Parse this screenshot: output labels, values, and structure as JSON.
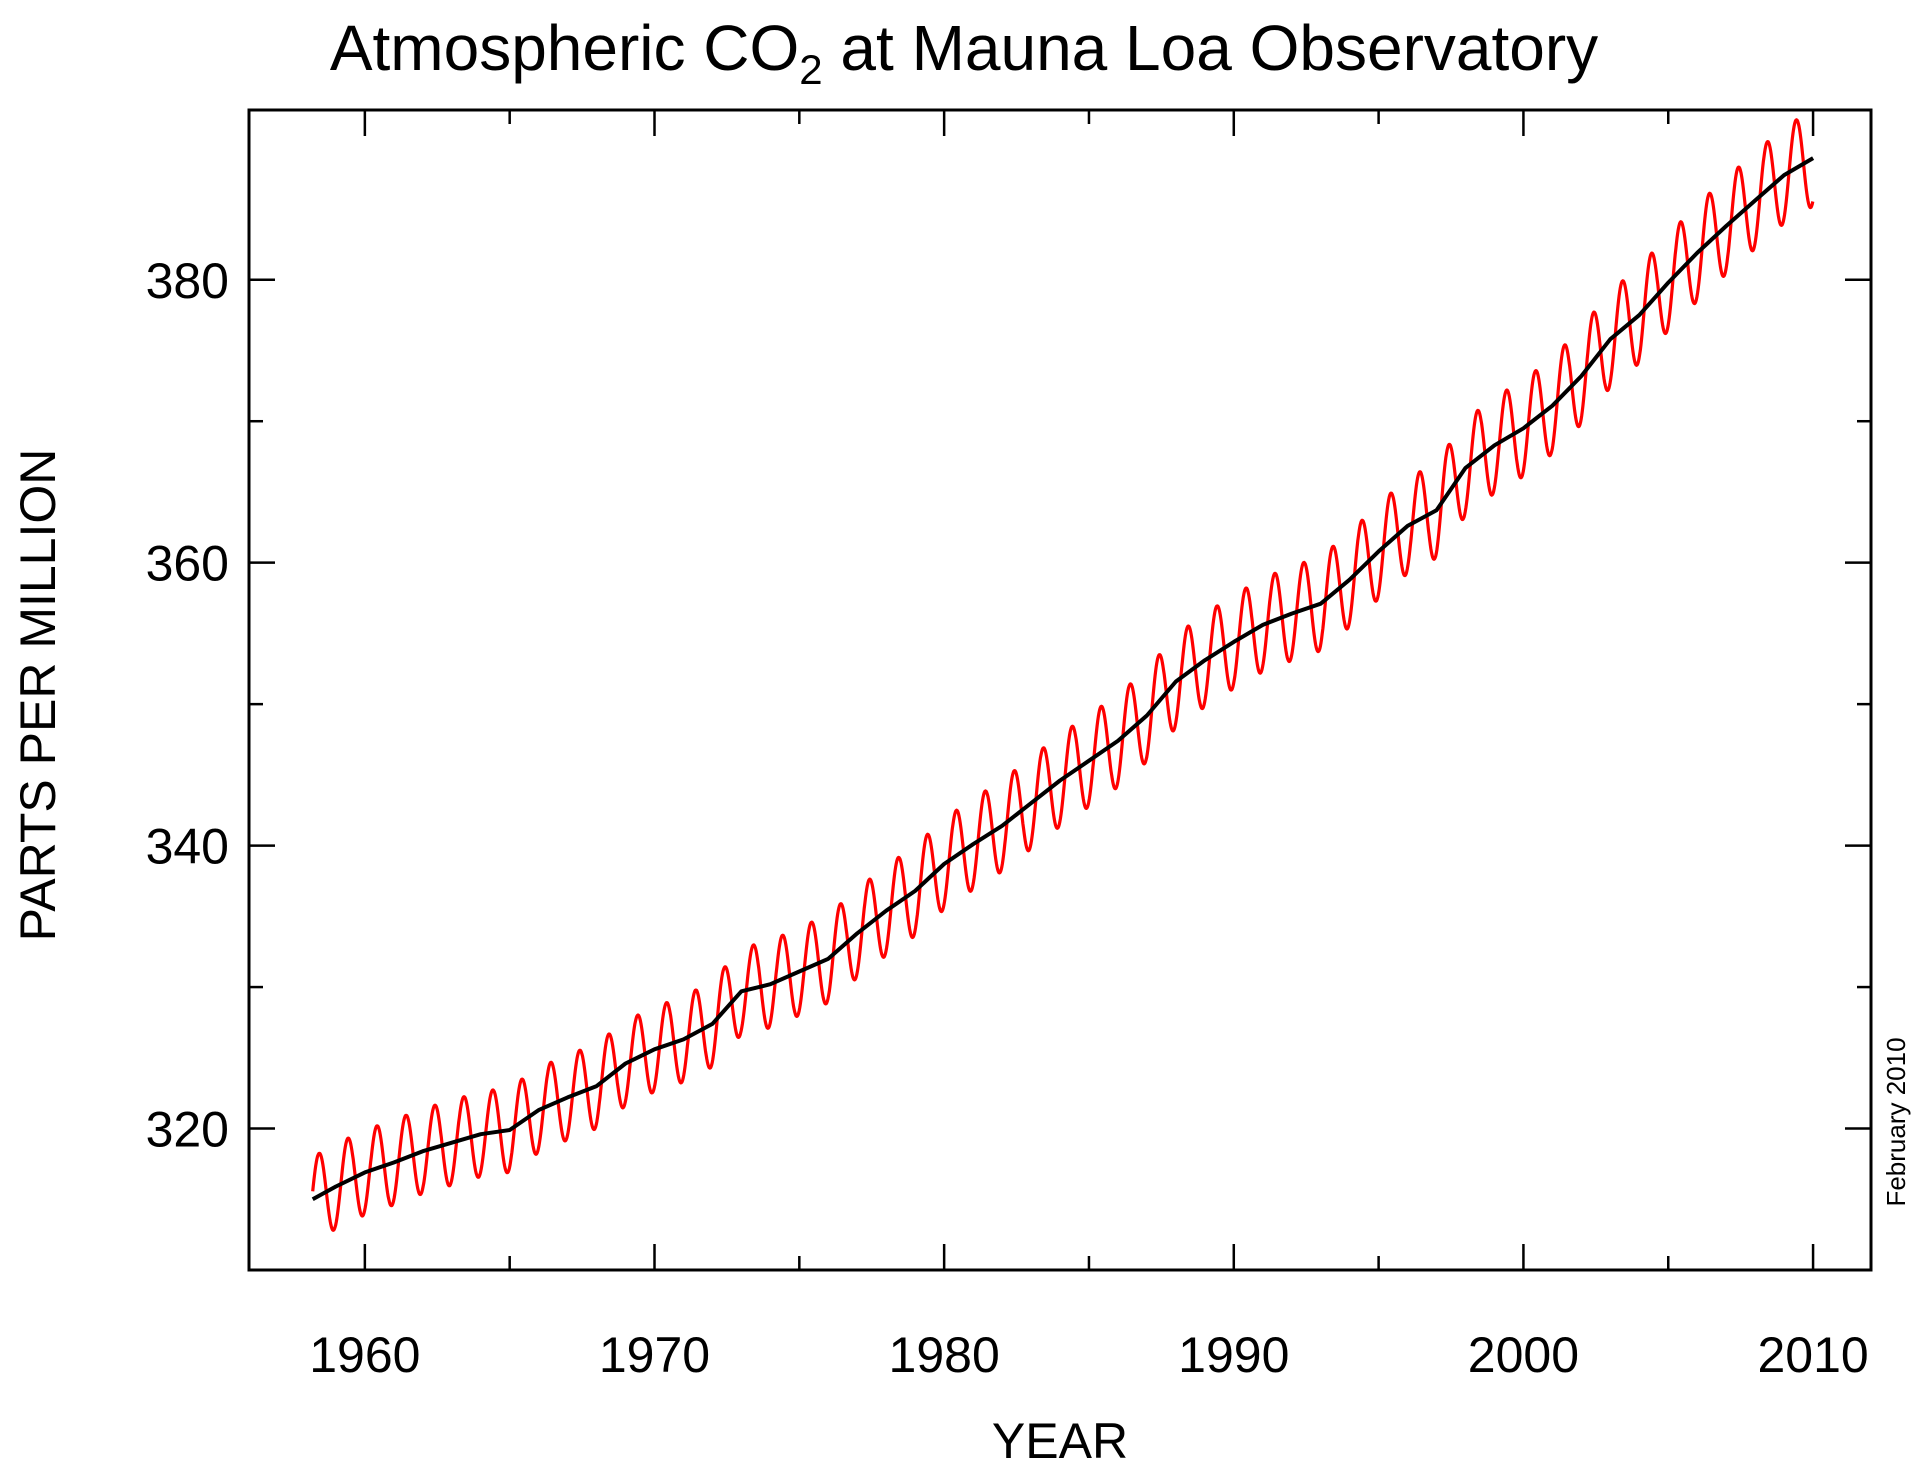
{
  "chart_data": {
    "type": "line",
    "title": {
      "prefix": "Atmospheric CO",
      "subscript": "2",
      "suffix": " at Mauna Loa Observatory"
    },
    "xlabel": "YEAR",
    "ylabel": "PARTS PER MILLION",
    "xlim": [
      1956,
      2012
    ],
    "ylim": [
      310,
      392
    ],
    "x_ticks": [
      1960,
      1970,
      1980,
      1990,
      2000,
      2010
    ],
    "x_minor_ticks": [
      1965,
      1975,
      1985,
      1995,
      2005
    ],
    "y_ticks": [
      320,
      340,
      360,
      380
    ],
    "y_minor_ticks": [
      330,
      350,
      370
    ],
    "grid": false,
    "annotation": "February 2010",
    "colors": {
      "monthly": "#ff0000",
      "annual": "#000000"
    },
    "series": [
      {
        "role": "monthly",
        "seasonal_amplitude_ppm": [
          [
            1958,
            3.0
          ],
          [
            1970,
            3.0
          ],
          [
            1980,
            3.2
          ],
          [
            1990,
            3.3
          ],
          [
            2000,
            3.4
          ],
          [
            2010,
            3.4
          ]
        ]
      },
      {
        "role": "annual",
        "x": [
          1958.2,
          1959,
          1960,
          1961,
          1962,
          1963,
          1964,
          1965,
          1966,
          1967,
          1968,
          1969,
          1970,
          1971,
          1972,
          1973,
          1974,
          1975,
          1976,
          1977,
          1978,
          1979,
          1980,
          1981,
          1982,
          1983,
          1984,
          1985,
          1986,
          1987,
          1988,
          1989,
          1990,
          1991,
          1992,
          1993,
          1994,
          1995,
          1996,
          1997,
          1998,
          1999,
          2000,
          2001,
          2002,
          2003,
          2004,
          2005,
          2006,
          2007,
          2008,
          2009,
          2010
        ],
        "y": [
          315.0,
          315.9,
          316.9,
          317.6,
          318.4,
          319.0,
          319.6,
          319.9,
          321.3,
          322.2,
          323.0,
          324.6,
          325.6,
          326.3,
          327.4,
          329.7,
          330.2,
          331.1,
          332.0,
          333.8,
          335.4,
          336.8,
          338.7,
          340.1,
          341.4,
          343.0,
          344.6,
          346.0,
          347.4,
          349.2,
          351.6,
          353.1,
          354.4,
          355.6,
          356.4,
          357.1,
          358.8,
          360.8,
          362.6,
          363.7,
          366.7,
          368.3,
          369.5,
          371.1,
          373.2,
          375.8,
          377.5,
          379.8,
          381.9,
          383.8,
          385.6,
          387.4,
          388.6
        ]
      }
    ]
  }
}
